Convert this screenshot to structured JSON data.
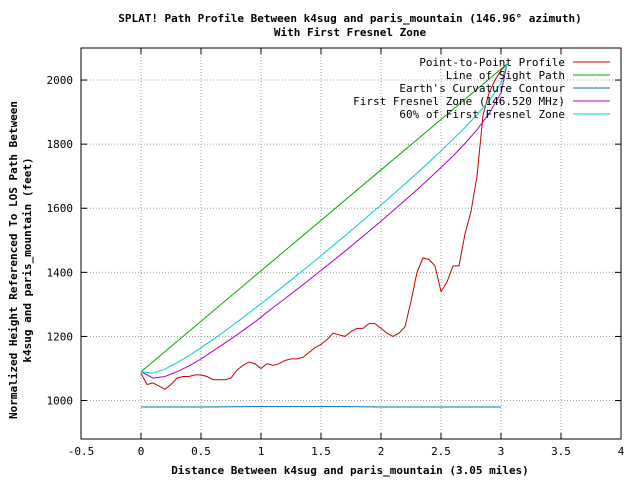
{
  "chart_data": {
    "type": "line",
    "title": [
      "SPLAT! Path Profile Between k4sug and paris_mountain (146.96° azimuth)",
      "With First Fresnel Zone"
    ],
    "xlabel": "Distance Between k4sug and paris_mountain (3.05 miles)",
    "ylabel": [
      "Normalized Height Referenced To LOS Path Between",
      "k4sug and paris_mountain (feet)"
    ],
    "xlim": [
      -0.5,
      4
    ],
    "ylim": [
      880,
      2100
    ],
    "xticks": [
      -0.5,
      0,
      0.5,
      1,
      1.5,
      2,
      2.5,
      3,
      3.5,
      4
    ],
    "xtick_labels": [
      "-0.5",
      "0",
      "0.5",
      "1",
      "1.5",
      "2",
      "2.5",
      "3",
      "3.5",
      "4"
    ],
    "yticks": [
      1000,
      1200,
      1400,
      1600,
      1800,
      2000
    ],
    "ytick_labels": [
      "1000",
      "1200",
      "1400",
      "1600",
      "1800",
      "2000"
    ],
    "grid": true,
    "legend_position": "top-right",
    "series": [
      {
        "name": "Point-to-Point Profile",
        "color": "#cc0000",
        "x": [
          0,
          0.05,
          0.1,
          0.15,
          0.2,
          0.25,
          0.3,
          0.35,
          0.4,
          0.45,
          0.5,
          0.55,
          0.6,
          0.65,
          0.7,
          0.75,
          0.8,
          0.85,
          0.9,
          0.95,
          1.0,
          1.05,
          1.1,
          1.15,
          1.2,
          1.25,
          1.3,
          1.35,
          1.4,
          1.45,
          1.5,
          1.55,
          1.6,
          1.65,
          1.7,
          1.75,
          1.8,
          1.85,
          1.9,
          1.95,
          2.0,
          2.05,
          2.1,
          2.15,
          2.2,
          2.25,
          2.3,
          2.35,
          2.4,
          2.45,
          2.5,
          2.55,
          2.6,
          2.65,
          2.7,
          2.75,
          2.8,
          2.85,
          2.9,
          2.95,
          3.0,
          3.05
        ],
        "y": [
          1085,
          1050,
          1055,
          1045,
          1035,
          1050,
          1070,
          1075,
          1075,
          1080,
          1080,
          1075,
          1065,
          1065,
          1065,
          1070,
          1095,
          1110,
          1120,
          1115,
          1100,
          1115,
          1110,
          1115,
          1125,
          1130,
          1130,
          1135,
          1150,
          1165,
          1175,
          1190,
          1210,
          1205,
          1200,
          1215,
          1225,
          1225,
          1240,
          1240,
          1225,
          1210,
          1200,
          1210,
          1230,
          1310,
          1400,
          1445,
          1440,
          1420,
          1340,
          1370,
          1420,
          1420,
          1520,
          1590,
          1700,
          1890,
          1960,
          2000,
          2030,
          2050
        ]
      },
      {
        "name": "Line of Sight Path",
        "color": "#00aa00",
        "x": [
          0,
          3.05
        ],
        "y": [
          1090,
          2050
        ]
      },
      {
        "name": "Earth's Curvature Contour",
        "color": "#0070c0",
        "x": [
          0,
          0.5,
          1.0,
          1.5,
          1.7,
          2.0,
          2.5,
          3.0
        ],
        "y": [
          980,
          980,
          981,
          981,
          981,
          980,
          980,
          980
        ]
      },
      {
        "name": "First Fresnel Zone (146.520 MHz)",
        "color": "#b000d0",
        "x": [
          0,
          0.1,
          0.2,
          0.3,
          0.4,
          0.5,
          0.6,
          0.7,
          0.8,
          0.9,
          1.0,
          1.1,
          1.2,
          1.3,
          1.4,
          1.5,
          1.6,
          1.7,
          1.8,
          1.9,
          2.0,
          2.1,
          2.2,
          2.3,
          2.4,
          2.5,
          2.6,
          2.7,
          2.8,
          2.9,
          3.0,
          3.05
        ],
        "y": [
          1090,
          1070,
          1075,
          1090,
          1108,
          1130,
          1155,
          1180,
          1205,
          1232,
          1260,
          1290,
          1318,
          1347,
          1376,
          1406,
          1436,
          1466,
          1497,
          1528,
          1560,
          1592,
          1625,
          1658,
          1692,
          1727,
          1763,
          1802,
          1845,
          1895,
          1960,
          2050
        ]
      },
      {
        "name": "60% of First Fresnel Zone",
        "color": "#00cccc",
        "x": [
          0,
          0.1,
          0.2,
          0.3,
          0.4,
          0.5,
          0.6,
          0.7,
          0.8,
          0.9,
          1.0,
          1.1,
          1.2,
          1.3,
          1.4,
          1.5,
          1.6,
          1.7,
          1.8,
          1.9,
          2.0,
          2.1,
          2.2,
          2.3,
          2.4,
          2.5,
          2.6,
          2.7,
          2.8,
          2.9,
          3.0,
          3.05
        ],
        "y": [
          1090,
          1085,
          1098,
          1118,
          1140,
          1165,
          1190,
          1217,
          1245,
          1273,
          1302,
          1331,
          1361,
          1391,
          1421,
          1452,
          1483,
          1514,
          1546,
          1578,
          1610,
          1643,
          1676,
          1710,
          1744,
          1779,
          1815,
          1852,
          1892,
          1935,
          1990,
          2050
        ]
      }
    ]
  }
}
